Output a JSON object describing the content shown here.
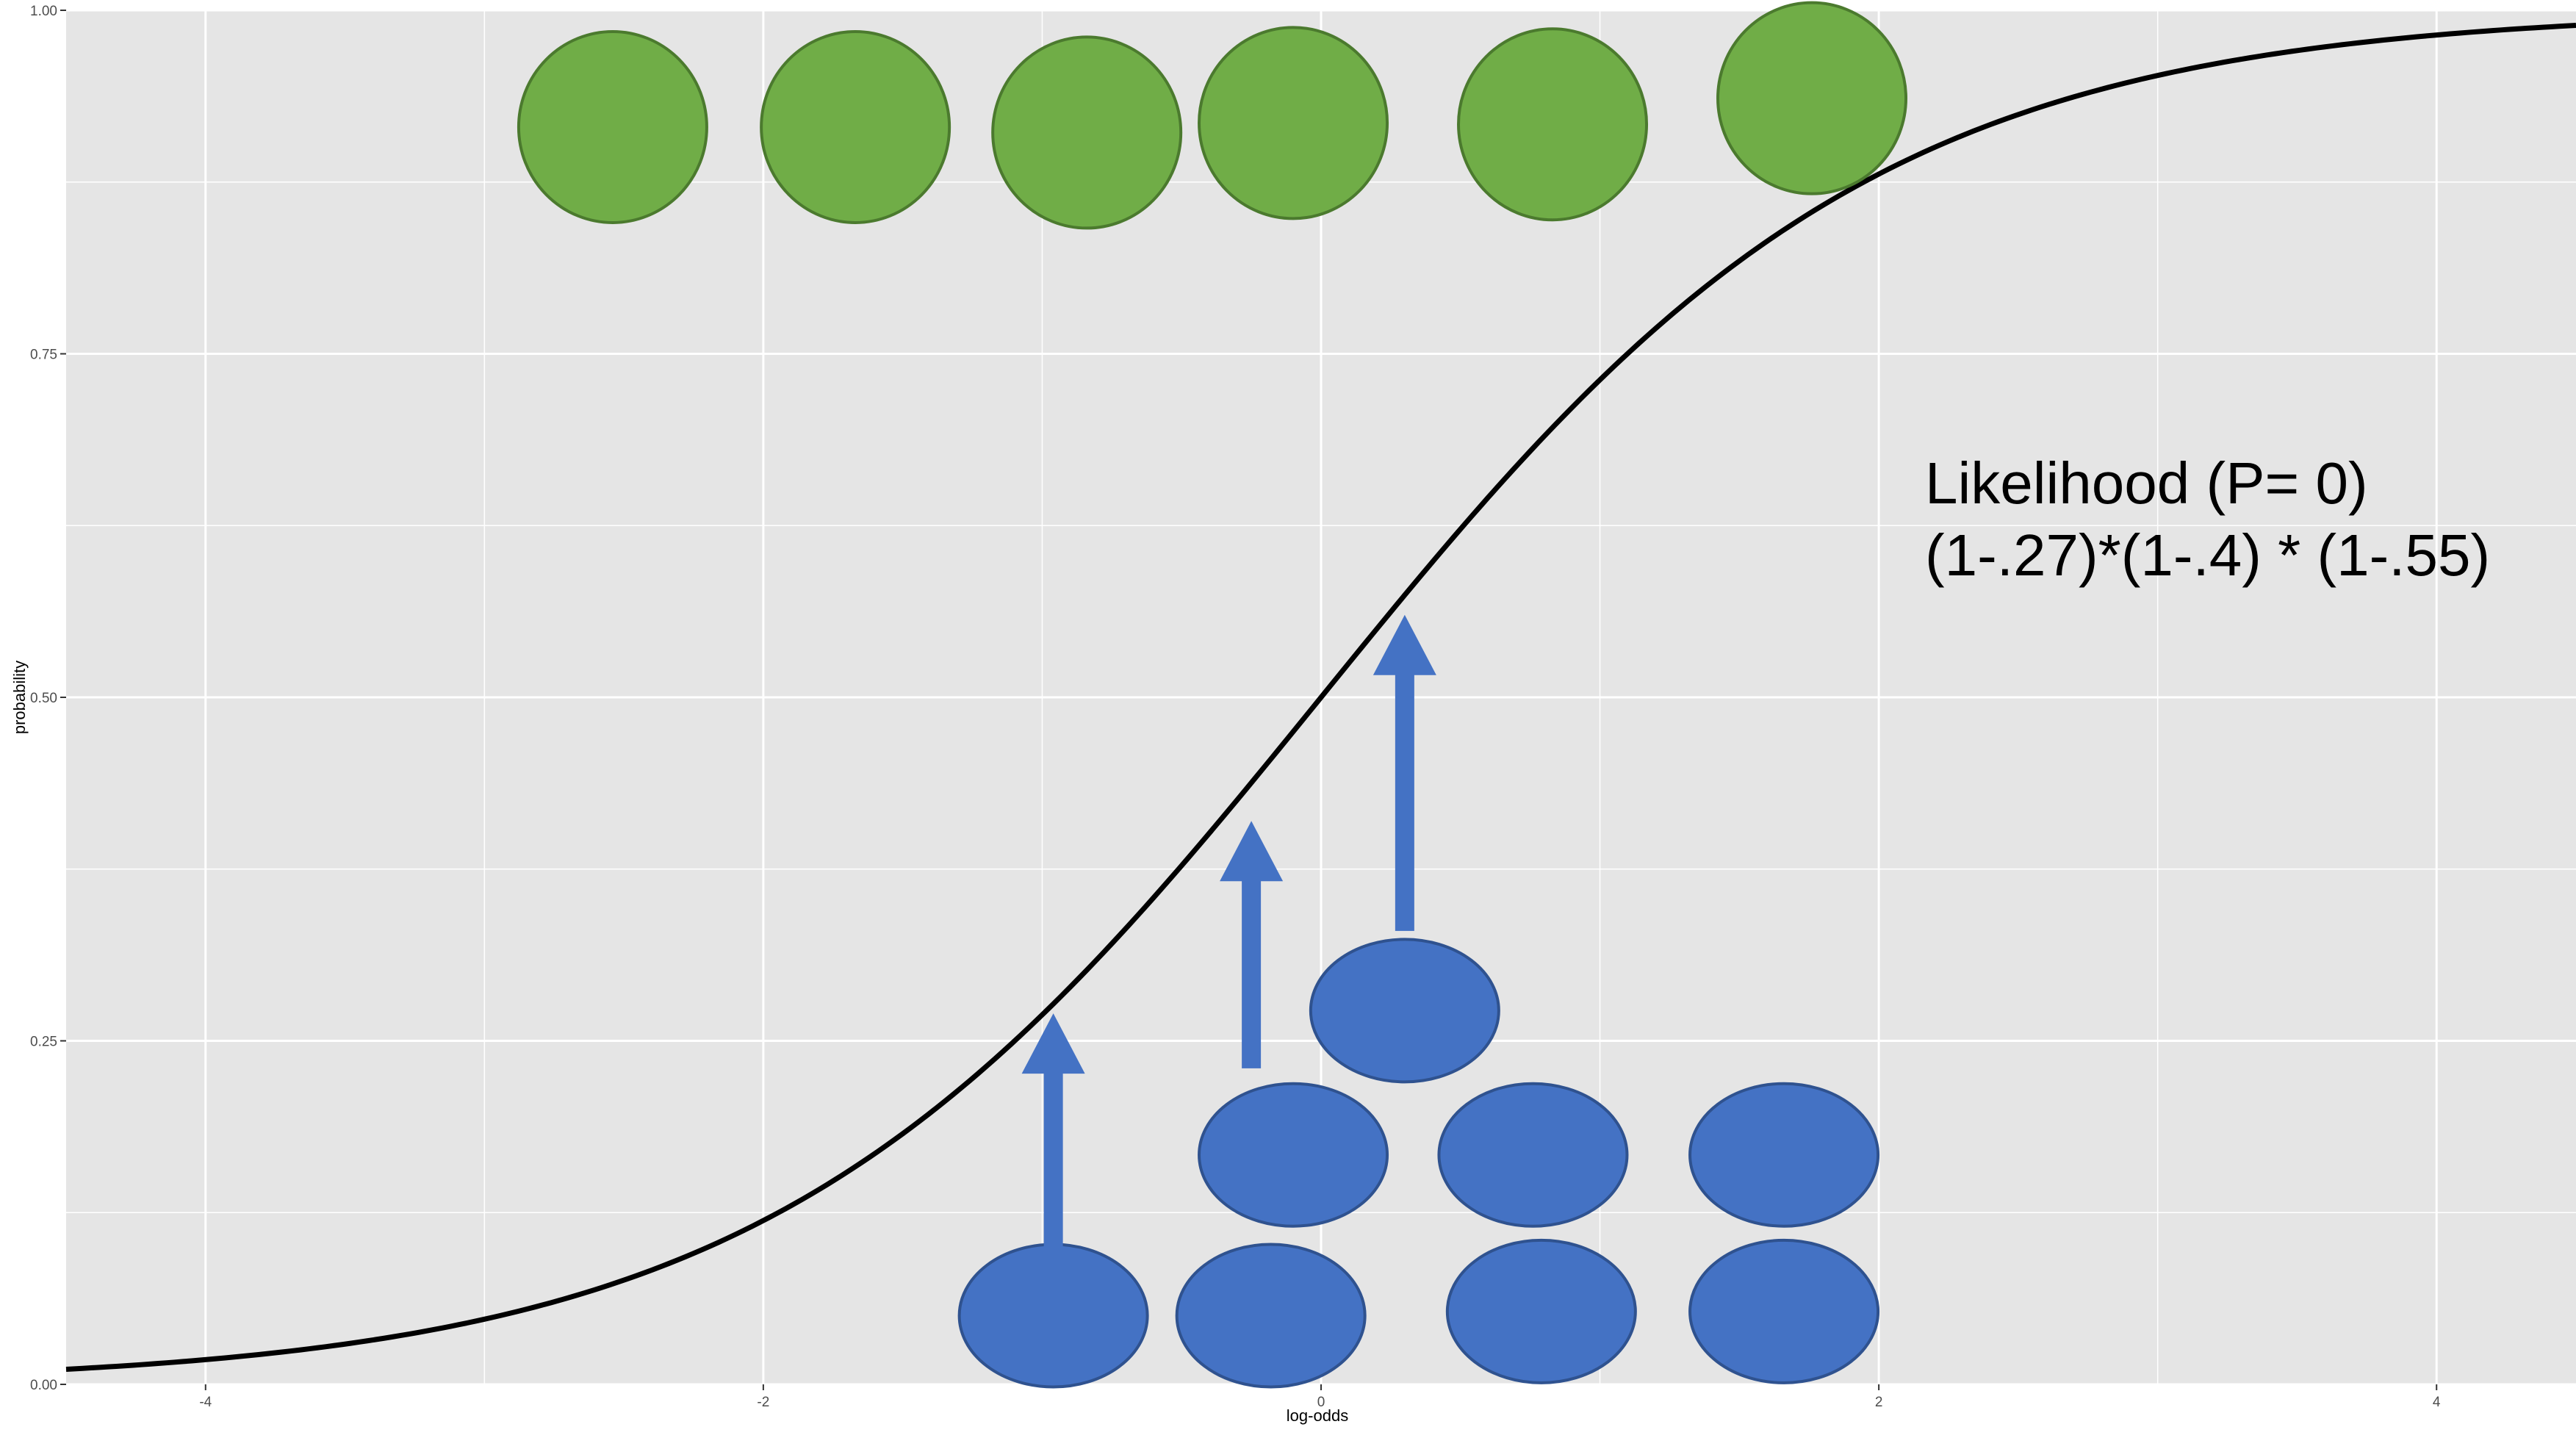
{
  "chart_data": {
    "type": "line",
    "title": "",
    "xlabel": "log-odds",
    "ylabel": "probability",
    "xlim": [
      -4.5,
      4.5
    ],
    "ylim": [
      0,
      1
    ],
    "x_ticks": [
      -4,
      -2,
      0,
      2,
      4
    ],
    "y_ticks": [
      0,
      0.25,
      0.5,
      0.75,
      1
    ],
    "x_tick_labels": [
      "-4",
      "-2",
      "0",
      "2",
      "4"
    ],
    "y_tick_labels": [
      "0.00",
      "0.25",
      "0.50",
      "0.75",
      "1.00"
    ],
    "grid": true,
    "series": [
      {
        "curve": "logistic",
        "x_range": [
          -4.5,
          4.5
        ],
        "color": "#000000"
      }
    ],
    "green_points": [
      {
        "x": -2.54,
        "y": 0.915
      },
      {
        "x": -1.67,
        "y": 0.915
      },
      {
        "x": -0.84,
        "y": 0.911
      },
      {
        "x": -0.1,
        "y": 0.918
      },
      {
        "x": 0.83,
        "y": 0.917
      },
      {
        "x": 1.76,
        "y": 0.936
      }
    ],
    "blue_points": [
      {
        "x": -0.96,
        "y": 0.05
      },
      {
        "x": -0.18,
        "y": 0.05
      },
      {
        "x": 0.79,
        "y": 0.053
      },
      {
        "x": 1.66,
        "y": 0.053
      },
      {
        "x": -0.1,
        "y": 0.167
      },
      {
        "x": 0.76,
        "y": 0.167
      },
      {
        "x": 1.66,
        "y": 0.167
      },
      {
        "x": 0.3,
        "y": 0.272
      }
    ],
    "arrows": [
      {
        "x": -0.96,
        "y_from": 0.1,
        "y_to": 0.27
      },
      {
        "x": -0.25,
        "y_from": 0.23,
        "y_to": 0.41
      },
      {
        "x": 0.3,
        "y_from": 0.33,
        "y_to": 0.56
      }
    ],
    "colors": {
      "panel": "#e5e5e5",
      "grid": "#ffffff",
      "curve": "#000000",
      "green_fill": "#70ad47",
      "green_stroke": "#4b7a2e",
      "blue_fill": "#4472c4",
      "blue_stroke": "#2f528f",
      "arrow": "#4472c4"
    },
    "annotations": [
      "Likelihood (P= 0)",
      "(1-.27)*(1-.4) * (1-.55)"
    ]
  }
}
